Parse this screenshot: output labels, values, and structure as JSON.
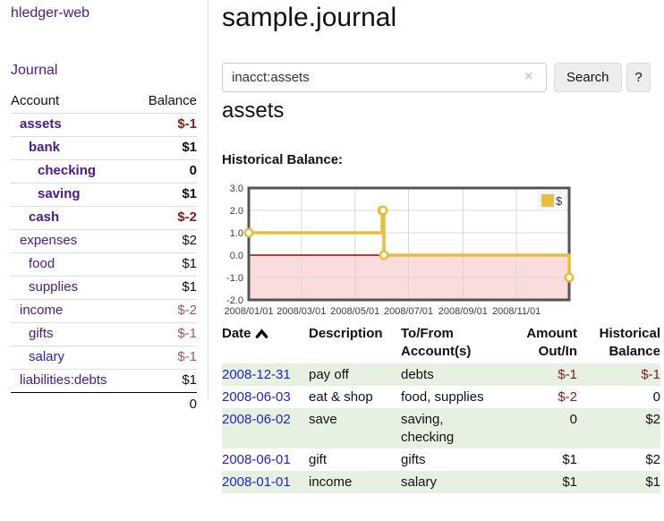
{
  "app": {
    "brand": "hledger-web",
    "journal_label": "Journal"
  },
  "colors": {
    "link_purple": "#4a1a8c",
    "link_blue": "#2222cc",
    "negative": "#8b1a1a",
    "negative_soft": "#a8545c",
    "row_stripe": "#e7f1e2",
    "button_bg": "#ededed",
    "chart_line": "#e8bd3e",
    "chart_negative_fill": "#fbdcdc",
    "chart_zero_line": "#a40000",
    "chart_border": "#545454",
    "chart_grid": "#d8d8d8"
  },
  "sidebar": {
    "header": {
      "account": "Account",
      "balance": "Balance"
    },
    "accounts": [
      {
        "name": "assets",
        "indent": 0,
        "bold": true,
        "blue": false,
        "balance": "$-1",
        "balance_class": "neg-strong"
      },
      {
        "name": "bank",
        "indent": 1,
        "bold": true,
        "blue": false,
        "balance": "$1",
        "balance_class": "pos-strong"
      },
      {
        "name": "checking",
        "indent": 2,
        "bold": true,
        "blue": false,
        "balance": "0",
        "balance_class": "pos-strong"
      },
      {
        "name": "saving",
        "indent": 2,
        "bold": true,
        "blue": false,
        "balance": "$1",
        "balance_class": "pos-strong"
      },
      {
        "name": "cash",
        "indent": 1,
        "bold": true,
        "blue": false,
        "balance": "$-2",
        "balance_class": "neg-strong"
      },
      {
        "name": "expenses",
        "indent": 0,
        "bold": false,
        "blue": false,
        "balance": "$2",
        "balance_class": "pos"
      },
      {
        "name": "food",
        "indent": 1,
        "bold": false,
        "blue": false,
        "balance": "$1",
        "balance_class": "pos"
      },
      {
        "name": "supplies",
        "indent": 1,
        "bold": false,
        "blue": false,
        "balance": "$1",
        "balance_class": "pos"
      },
      {
        "name": "income",
        "indent": 0,
        "bold": false,
        "blue": false,
        "balance": "$-2",
        "balance_class": "neg-soft"
      },
      {
        "name": "gifts",
        "indent": 1,
        "bold": false,
        "blue": false,
        "balance": "$-1",
        "balance_class": "neg-soft"
      },
      {
        "name": "salary",
        "indent": 1,
        "bold": false,
        "blue": true,
        "balance": "$-1",
        "balance_class": "neg-soft"
      },
      {
        "name": "liabilities:debts",
        "indent": 0,
        "bold": false,
        "blue": false,
        "balance": "$1",
        "balance_class": "pos"
      }
    ],
    "total": "0"
  },
  "main": {
    "title": "sample.journal",
    "search": {
      "value": "inacct:assets",
      "clear_icon": "×",
      "button_label": "Search",
      "help_label": "?"
    },
    "account_heading": "assets",
    "register": {
      "headers": [
        "Date",
        "Description",
        "To/From Account(s)",
        "Amount Out/In",
        "Historical Balance"
      ],
      "sort": {
        "column": "Date",
        "ascending": true
      },
      "rows": [
        {
          "date": "2008-12-31",
          "description": "pay off",
          "accounts": [
            "debts"
          ],
          "amount": "$-1",
          "amount_negative": true,
          "balance": "$-1",
          "balance_negative": true
        },
        {
          "date": "2008-06-03",
          "description": "eat & shop",
          "accounts": [
            "food, supplies"
          ],
          "amount": "$-2",
          "amount_negative": true,
          "balance": "0",
          "balance_negative": false
        },
        {
          "date": "2008-06-02",
          "description": "save",
          "accounts": [
            "saving,",
            "checking"
          ],
          "amount": "0",
          "amount_negative": false,
          "balance": "$2",
          "balance_negative": false
        },
        {
          "date": "2008-06-01",
          "description": "gift",
          "accounts": [
            "gifts"
          ],
          "amount": "$1",
          "amount_negative": false,
          "balance": "$2",
          "balance_negative": false
        },
        {
          "date": "2008-01-01",
          "description": "income",
          "accounts": [
            "salary"
          ],
          "amount": "$1",
          "amount_negative": false,
          "balance": "$1",
          "balance_negative": false
        }
      ]
    }
  },
  "chart_data": {
    "type": "line",
    "step": true,
    "title": "Historical Balance:",
    "series": [
      {
        "name": "$",
        "points": [
          [
            "2008-01-01",
            1
          ],
          [
            "2008-06-01",
            2
          ],
          [
            "2008-06-02",
            2
          ],
          [
            "2008-06-03",
            0
          ],
          [
            "2008-12-31",
            -1
          ]
        ]
      }
    ],
    "ylim": [
      -2,
      3
    ],
    "yticks": [
      3.0,
      2.0,
      1.0,
      0.0,
      -1.0,
      -2.0
    ],
    "xticks": [
      "2008/01/01",
      "2008/03/01",
      "2008/05/01",
      "2008/07/01",
      "2008/09/01",
      "2008/11/01"
    ],
    "legend_position": "top-right",
    "grid": true,
    "negative_region_shaded": true
  }
}
